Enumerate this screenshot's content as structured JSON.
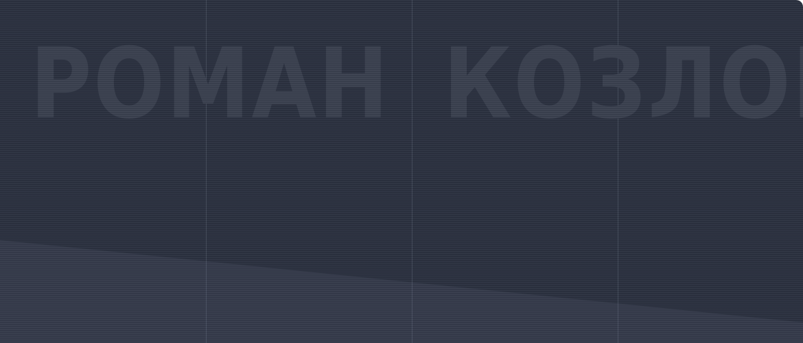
{
  "banner": {
    "name_first": "РОМАН",
    "name_last": "КОЗЛОВ"
  },
  "colors": {
    "background": "#2c3241",
    "lower_band": "#363c4c",
    "watermark_text": "#3c4251",
    "grid_line": "#a0aabe"
  }
}
